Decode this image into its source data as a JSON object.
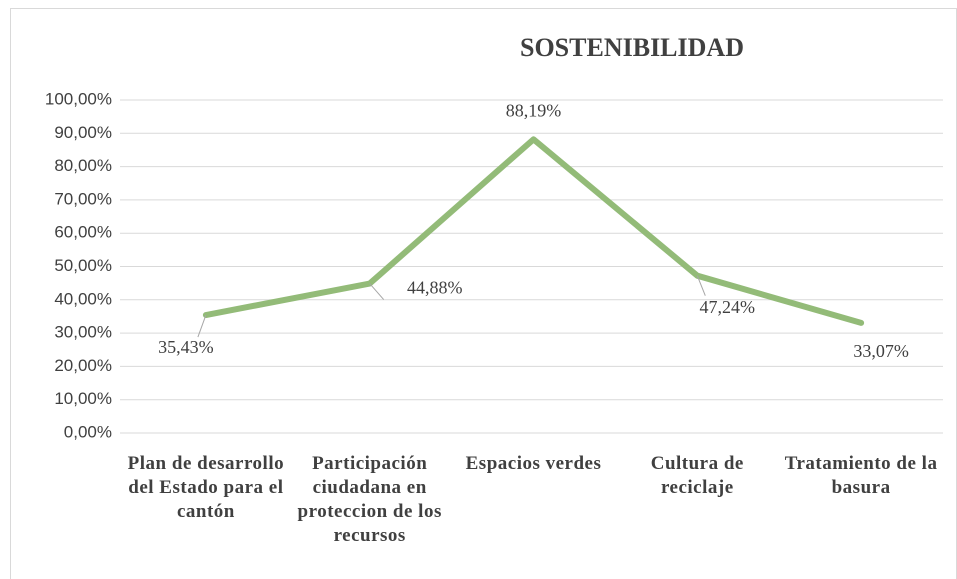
{
  "chart_data": {
    "type": "line",
    "title": "SOSTENIBILIDAD",
    "categories": [
      "Plan de desarrollo del Estado para el cantón",
      "Participación ciudadana en proteccion de los recursos",
      "Espacios verdes",
      "Cultura de reciclaje",
      "Tratamiento de la basura"
    ],
    "values": [
      35.43,
      44.88,
      88.19,
      47.24,
      33.07
    ],
    "value_labels": [
      "35,43%",
      "44,88%",
      "88,19%",
      "47,24%",
      "33,07%"
    ],
    "color": "#93bb78",
    "ylim": [
      0,
      100
    ],
    "yticks": [
      {
        "value": 0,
        "label": "0,00%"
      },
      {
        "value": 10,
        "label": "10,00%"
      },
      {
        "value": 20,
        "label": "20,00%"
      },
      {
        "value": 30,
        "label": "30,00%"
      },
      {
        "value": 40,
        "label": "40,00%"
      },
      {
        "value": 50,
        "label": "50,00%"
      },
      {
        "value": 60,
        "label": "60,00%"
      },
      {
        "value": 70,
        "label": "70,00%"
      },
      {
        "value": 80,
        "label": "80,00%"
      },
      {
        "value": 90,
        "label": "90,00%"
      },
      {
        "value": 100,
        "label": "100,00%"
      }
    ],
    "grid": true
  }
}
